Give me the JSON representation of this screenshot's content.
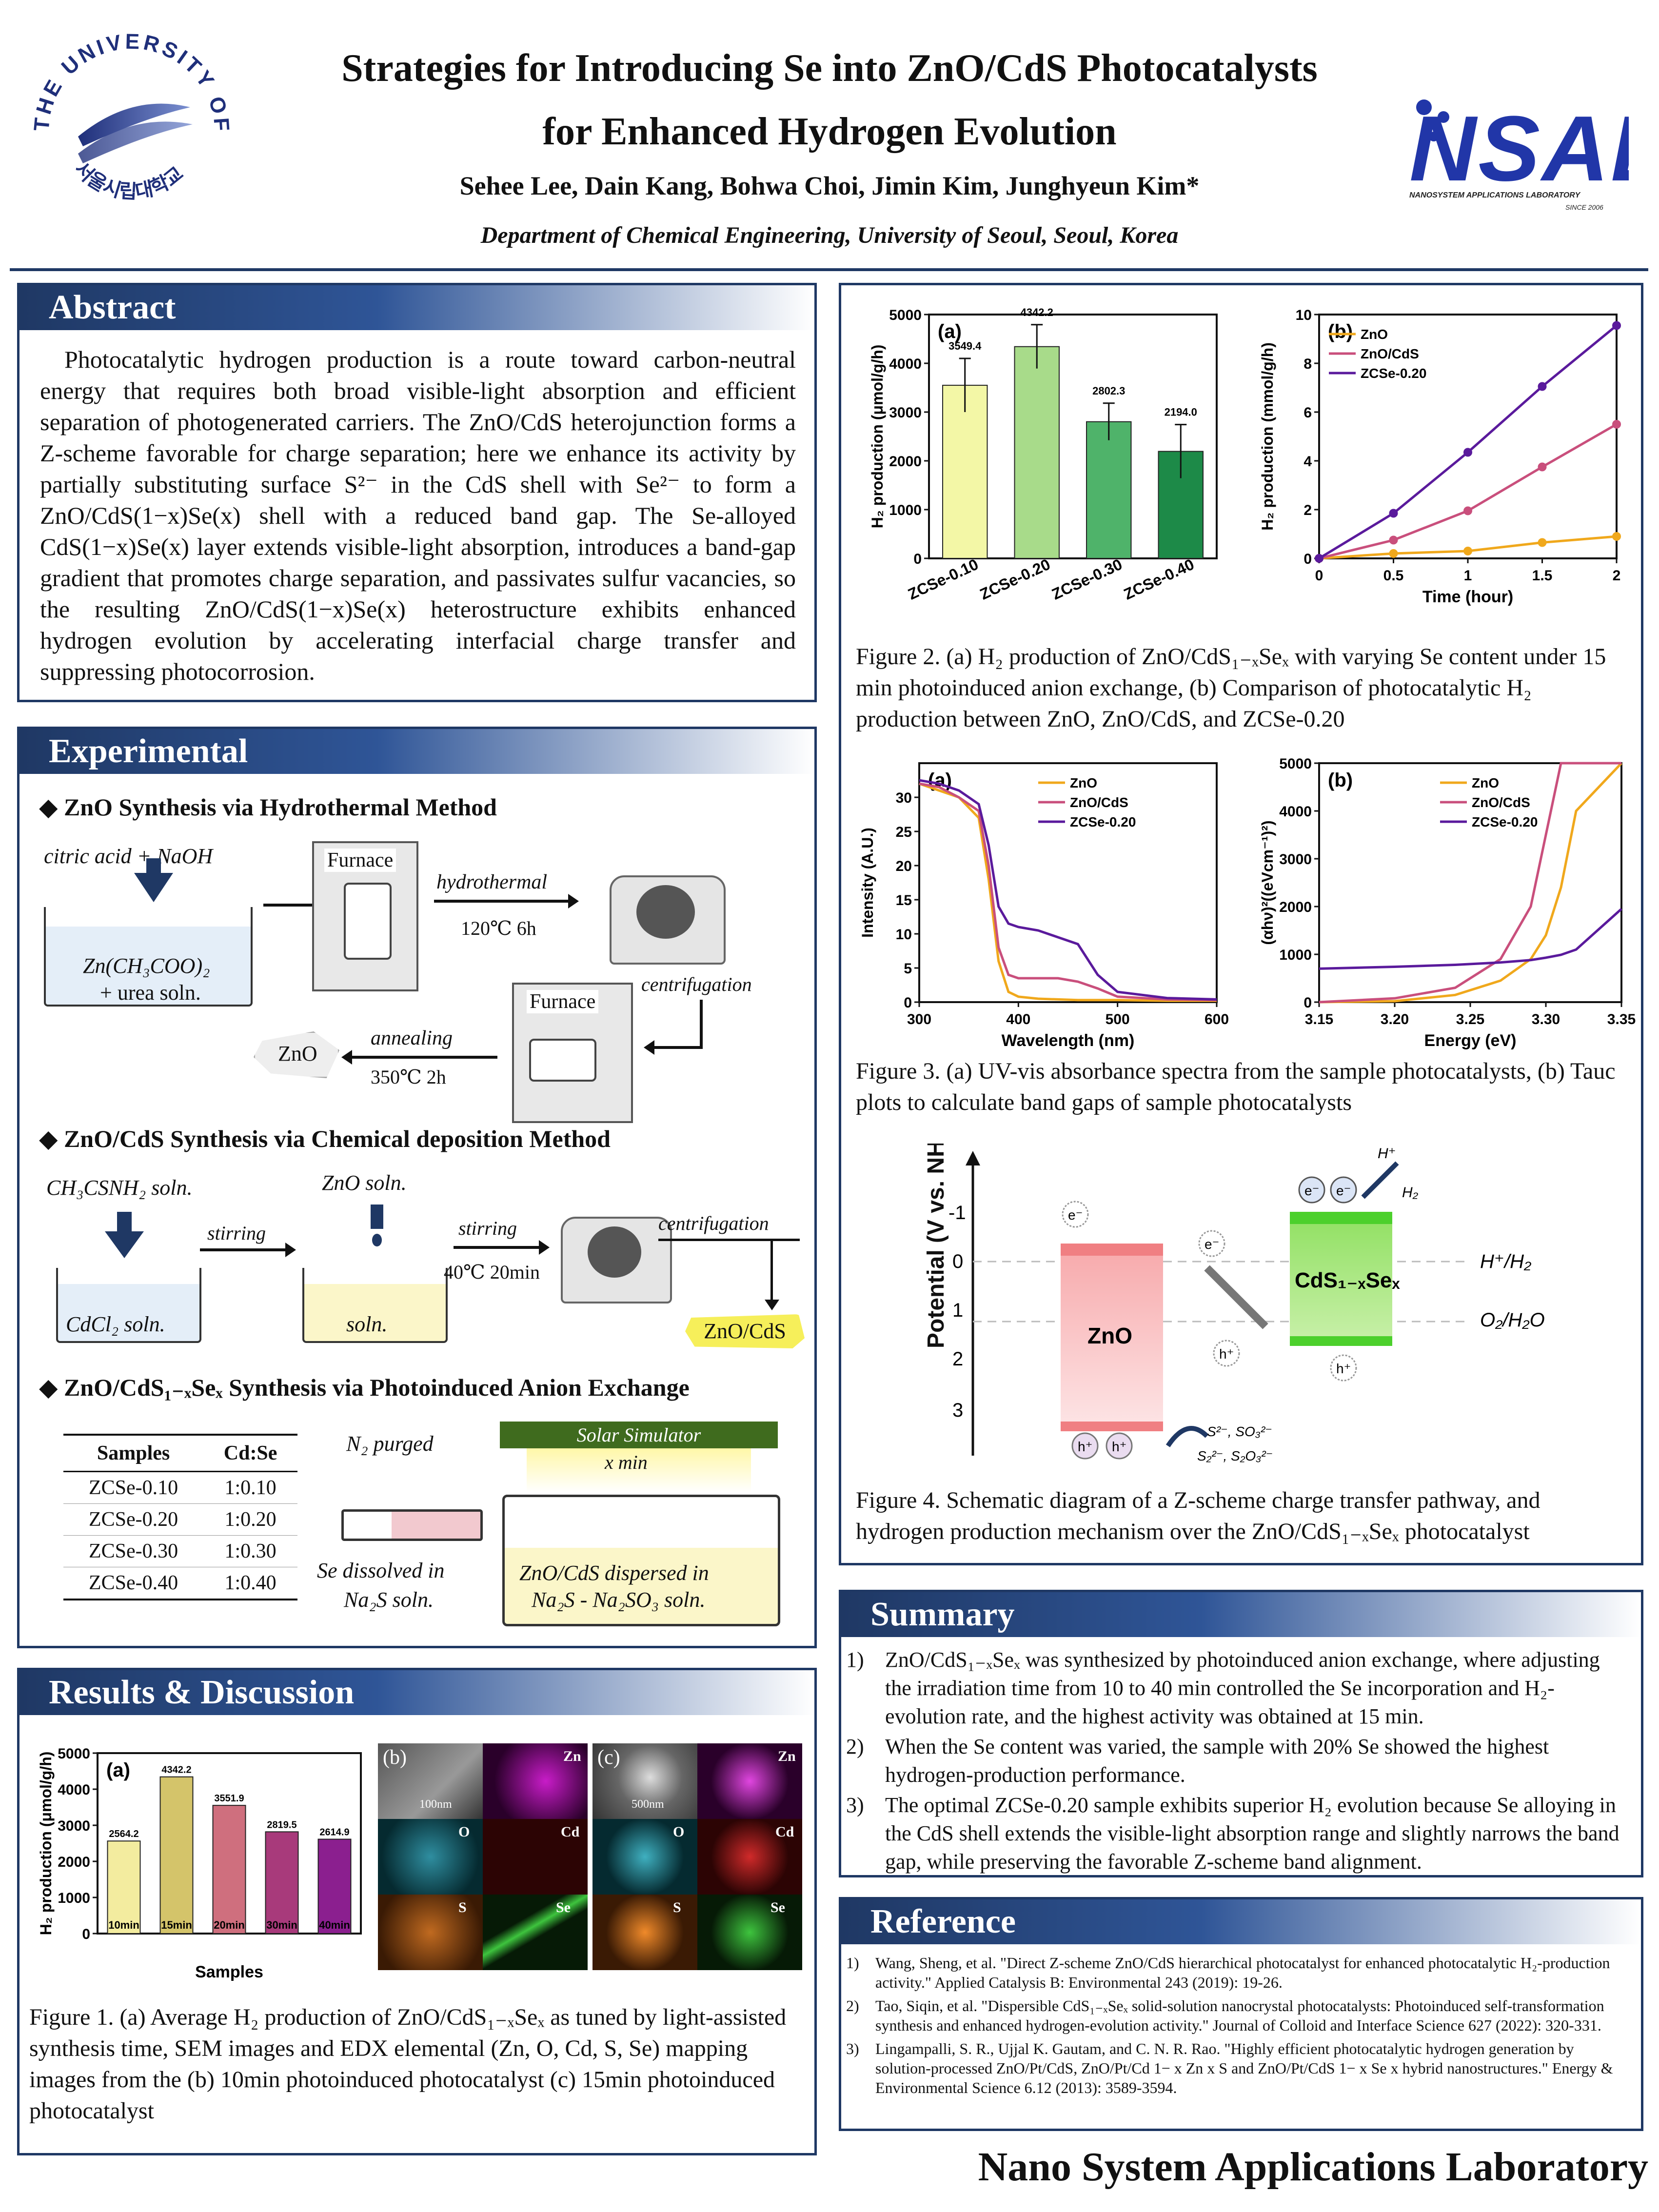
{
  "header": {
    "title_line1": "Strategies for Introducing Se into ZnO/CdS Photocatalysts",
    "title_line2": "for Enhanced Hydrogen Evolution",
    "authors": "Sehee Lee, Dain Kang, Bohwa Choi, Jimin Kim, Junghyeun Kim*",
    "affiliation": "Department of Chemical Engineering, University of Seoul, Seoul, Korea",
    "uos_logo_top": "THE UNIVERSITY OF SEOUL",
    "uos_logo_bottom": "서울시립대학교",
    "nsal_logo": "NSAL",
    "nsal_sub": "NANOSYSTEM APPLICATIONS LABORATORY",
    "nsal_since": "SINCE 2006"
  },
  "abstract": {
    "heading": "Abstract",
    "text": "Photocatalytic hydrogen production is a route toward carbon-neutral energy that requires both broad visible-light absorption and efficient separation of photogenerated carriers. The ZnO/CdS heterojunction forms a Z-scheme favorable for charge separation; here we enhance its activity by partially substituting surface S²⁻ in the CdS shell with Se²⁻ to form a ZnO/CdS(1−x)Se(x) shell with a reduced band gap. The Se-alloyed CdS(1−x)Se(x) layer extends visible-light absorption, introduces a band-gap gradient that promotes charge separation, and passivates sulfur vacancies, so the resulting ZnO/CdS(1−x)Se(x) heterostructure exhibits enhanced hydrogen evolution by accelerating interfacial charge transfer and suppressing photocorrosion."
  },
  "experimental": {
    "heading": "Experimental",
    "s1": "◆ ZnO Synthesis via Hydrothermal Method",
    "citric": "citric acid + NaOH",
    "zn_soln": "Zn(CH₃COO)₂",
    "urea": "+ urea soln.",
    "furnace": "Furnace",
    "hydrothermal": "hydrothermal",
    "temp1": "120℃ 6h",
    "centrifugation": "centrifugation",
    "annealing": "annealing",
    "temp2": "350℃ 2h",
    "zno": "ZnO",
    "s2": "◆ ZnO/CdS Synthesis via Chemical deposition Method",
    "thio": "CH₃CSNH₂ soln.",
    "zno_soln": "ZnO soln.",
    "stirring": "stirring",
    "temp3": "40℃ 20min",
    "cdcl2": "CdCl₂ soln.",
    "soln": "soln.",
    "zno_cds": "ZnO/CdS",
    "s3": "◆ ZnO/CdS₁₋ₓSeₓ Synthesis via Photoinduced Anion Exchange",
    "table_headers": [
      "Samples",
      "Cd:Se"
    ],
    "table_rows": [
      [
        "ZCSe-0.10",
        "1:0.10"
      ],
      [
        "ZCSe-0.20",
        "1:0.20"
      ],
      [
        "ZCSe-0.30",
        "1:0.30"
      ],
      [
        "ZCSe-0.40",
        "1:0.40"
      ]
    ],
    "n2": "N₂ purged",
    "solar": "Solar Simulator",
    "xmin": "x min",
    "se_diss1": "Se dissolved in",
    "se_diss2": "Na₂S soln.",
    "disp1": "ZnO/CdS dispersed in",
    "disp2": "Na₂S - Na₂SO₃ soln."
  },
  "results": {
    "heading": "Results & Discussion",
    "fig1_caption": "Figure 1. (a) Average H₂ production of ZnO/CdS₁₋ₓSeₓ as tuned by light-assisted synthesis time, SEM images and EDX elemental (Zn, O, Cd, S, Se) mapping images from the (b) 10min photoinduced photocatalyst (c) 15min photoinduced photocatalyst",
    "map_labels": [
      "Zn",
      "O",
      "Cd",
      "S",
      "Se"
    ],
    "scale_b": "100nm",
    "scale_c": "500nm",
    "panel_b": "(b)",
    "panel_c": "(c)"
  },
  "figure2": {
    "caption": "Figure 2. (a) H₂ production of ZnO/CdS₁₋ₓSeₓ with varying Se content under 15 min photoinduced anion exchange, (b) Comparison of photocatalytic H₂ production between ZnO, ZnO/CdS, and ZCSe-0.20"
  },
  "figure3": {
    "caption": "Figure 3. (a) UV-vis absorbance spectra from the sample photocatalysts, (b) Tauc plots to calculate band gaps of sample photocatalysts"
  },
  "figure4": {
    "caption": "Figure 4. Schematic diagram of a Z-scheme charge transfer pathway, and hydrogen production mechanism over the ZnO/CdS₁₋ₓSeₓ photocatalyst",
    "ylabel": "Potential (V vs. NHE)",
    "ticks": [
      "-1",
      "0",
      "1",
      "2",
      "3"
    ],
    "zno": "ZnO",
    "cdsse": "CdS₁₋ₓSeₓ",
    "h2": "H⁺/H₂",
    "o2": "O₂/H₂O",
    "electron": "e⁻",
    "hole": "h⁺",
    "hplus": "H⁺",
    "h2out": "H₂",
    "sac1": "S²⁻, SO₃²⁻",
    "sac2": "S₂²⁻, S₂O₃²⁻"
  },
  "summary": {
    "heading": "Summary",
    "items": [
      "ZnO/CdS₁₋ₓSeₓ was synthesized by photoinduced anion exchange, where adjusting the irradiation time from 10 to 40 min controlled the Se incorporation and H₂-evolution rate, and the highest activity was obtained at 15 min.",
      "When the Se content was varied, the sample with 20% Se showed the highest hydrogen-production performance.",
      "The optimal ZCSe-0.20 sample exhibits superior H₂ evolution because Se alloying in the CdS shell extends the visible-light absorption range and slightly narrows the band gap, while preserving the favorable Z-scheme band alignment."
    ]
  },
  "reference": {
    "heading": "Reference",
    "items": [
      "Wang, Sheng, et al. \"Direct Z-scheme ZnO/CdS hierarchical photocatalyst for enhanced photocatalytic H₂-production activity.\" Applied Catalysis B: Environmental 243 (2019): 19-26.",
      "Tao, Siqin, et al. \"Dispersible CdS₁₋ₓSeₓ solid-solution nanocrystal photocatalysts: Photoinduced self-transformation synthesis and enhanced hydrogen-evolution activity.\" Journal of Colloid and Interface Science 627 (2022): 320-331.",
      "Lingampalli, S. R., Ujjal K. Gautam, and C. N. R. Rao. \"Highly efficient photocatalytic hydrogen generation by solution-processed ZnO/Pt/CdS, ZnO/Pt/Cd 1− x Zn x S and ZnO/Pt/CdS 1− x Se x hybrid nanostructures.\" Energy & Environmental Science 6.12 (2013): 3589-3594."
    ]
  },
  "footer": "Nano System Applications Laboratory",
  "chart_data": [
    {
      "id": "fig1a",
      "type": "bar",
      "panel": "(a)",
      "categories": [
        "10min",
        "15min",
        "20min",
        "30min",
        "40min"
      ],
      "values": [
        2564.2,
        4342.2,
        3551.9,
        2819.5,
        2614.9
      ],
      "value_labels": [
        "2564.2",
        "4342.2",
        "3551.9",
        "2819.5",
        "2614.9"
      ],
      "xlabel": "Samples",
      "ylabel": "H₂ production (μmol/g/h)",
      "ylim": [
        0,
        5000
      ],
      "yticks": [
        "0",
        "1000",
        "2000",
        "3000",
        "4000",
        "5000"
      ],
      "colors": [
        "#f3ec9f",
        "#d4c46a",
        "#cf6f7e",
        "#a83a7b",
        "#8b1f8f"
      ]
    },
    {
      "id": "fig2a",
      "type": "bar",
      "panel": "(a)",
      "categories": [
        "ZCSe-0.10",
        "ZCSe-0.20",
        "ZCSe-0.30",
        "ZCSe-0.40"
      ],
      "values": [
        3549.4,
        4342.2,
        2802.3,
        2194.0
      ],
      "value_labels": [
        "3549.4",
        "4342.2",
        "2802.3",
        "2194.0"
      ],
      "errors": [
        550,
        450,
        380,
        550
      ],
      "ylabel": "H₂ production (μmol/g/h)",
      "ylim": [
        0,
        5000
      ],
      "yticks": [
        "0",
        "1000",
        "2000",
        "3000",
        "4000",
        "5000"
      ],
      "colors": [
        "#f3f7a6",
        "#a8db8a",
        "#4fb36a",
        "#1d8a48"
      ]
    },
    {
      "id": "fig2b",
      "type": "line",
      "panel": "(b)",
      "x": [
        0,
        0.5,
        1,
        1.5,
        2
      ],
      "series": [
        {
          "name": "ZnO",
          "color": "#f0a81c",
          "values": [
            0,
            0.2,
            0.3,
            0.65,
            0.9
          ]
        },
        {
          "name": "ZnO/CdS",
          "color": "#c94f7c",
          "values": [
            0,
            0.75,
            1.95,
            3.75,
            5.5
          ]
        },
        {
          "name": "ZCSe-0.20",
          "color": "#5a1a9c",
          "values": [
            0,
            1.85,
            4.35,
            7.05,
            9.55
          ]
        }
      ],
      "xlabel": "Time (hour)",
      "ylabel": "H₂ production (mmol/g/h)",
      "xlim": [
        0,
        2
      ],
      "ylim": [
        0,
        10
      ],
      "xticks": [
        "0",
        "0.5",
        "1",
        "1.5",
        "2"
      ],
      "yticks": [
        "0",
        "2",
        "4",
        "6",
        "8",
        "10"
      ]
    },
    {
      "id": "fig3a",
      "type": "line",
      "panel": "(a)",
      "x": [
        300,
        320,
        340,
        360,
        370,
        380,
        390,
        400,
        420,
        440,
        460,
        480,
        500,
        550,
        600
      ],
      "series": [
        {
          "name": "ZnO",
          "color": "#f0a81c",
          "values": [
            32,
            31,
            30,
            27,
            18,
            6,
            1.5,
            0.8,
            0.5,
            0.4,
            0.3,
            0.3,
            0.3,
            0.2,
            0.2
          ]
        },
        {
          "name": "ZnO/CdS",
          "color": "#c94f7c",
          "values": [
            32,
            31.5,
            30,
            28,
            20,
            8,
            4,
            3.5,
            3.5,
            3.5,
            3,
            2,
            0.8,
            0.4,
            0.3
          ]
        },
        {
          "name": "ZCSe-0.20",
          "color": "#5a1a9c",
          "values": [
            32.5,
            32,
            31,
            29,
            23,
            14,
            11.5,
            11,
            10.5,
            9.5,
            8.5,
            4,
            1.5,
            0.6,
            0.4
          ]
        }
      ],
      "xlabel": "Wavelength (nm)",
      "ylabel": "Intensity (A.U.)",
      "xlim": [
        300,
        600
      ],
      "ylim": [
        0,
        35
      ],
      "xticks": [
        "300",
        "400",
        "500",
        "600"
      ],
      "yticks": [
        "0",
        "5",
        "10",
        "15",
        "20",
        "25",
        "30"
      ]
    },
    {
      "id": "fig3b",
      "type": "line",
      "panel": "(b)",
      "x": [
        3.15,
        3.2,
        3.24,
        3.27,
        3.29,
        3.3,
        3.31,
        3.32,
        3.35
      ],
      "series": [
        {
          "name": "ZnO",
          "color": "#f0a81c",
          "values": [
            0,
            20,
            150,
            450,
            900,
            1400,
            2400,
            4000,
            5000
          ]
        },
        {
          "name": "ZnO/CdS",
          "color": "#c94f7c",
          "values": [
            0,
            80,
            300,
            900,
            2000,
            3500,
            5000,
            5000,
            5000
          ]
        },
        {
          "name": "ZCSe-0.20",
          "color": "#5a1a9c",
          "values": [
            700,
            740,
            780,
            830,
            880,
            930,
            990,
            1100,
            1950
          ]
        }
      ],
      "xlabel": "Energy (eV)",
      "ylabel": "(αhν)²((eVcm⁻¹)²)",
      "xlim": [
        3.15,
        3.35
      ],
      "ylim": [
        0,
        5000
      ],
      "xticks": [
        "3.15",
        "3.20",
        "3.25",
        "3.30",
        "3.35"
      ],
      "yticks": [
        "0",
        "1000",
        "2000",
        "3000",
        "4000",
        "5000"
      ]
    }
  ]
}
